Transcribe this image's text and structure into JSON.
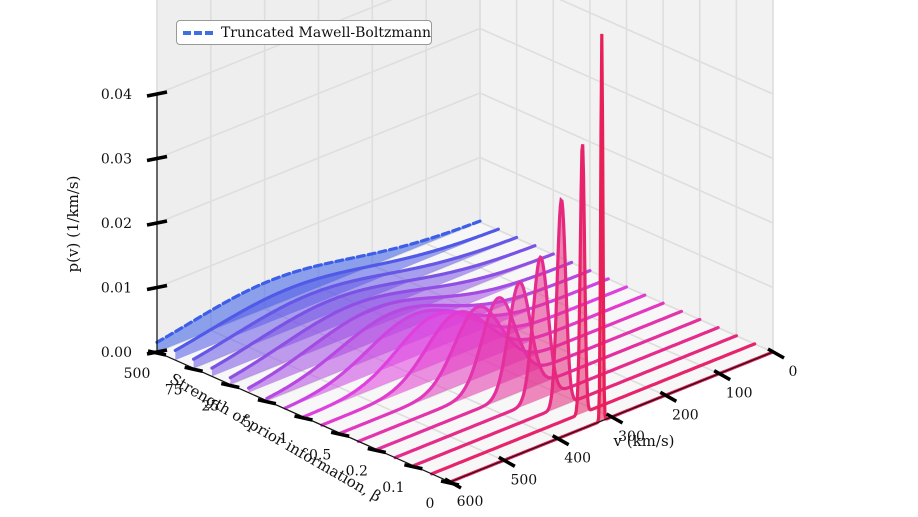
{
  "chart_data": {
    "type": "area",
    "projection": "3d",
    "grid": true,
    "legend_placement": "top-left",
    "legend": [
      {
        "label": "Truncated Mawell-Boltzmann",
        "style": "dashed",
        "color": "#3f6fe0"
      }
    ],
    "xlabel": "$p(v)$ (1/km/s)",
    "xlabel_display": "p(v)  (1/km/s)",
    "zlabel": "$v$ (km/s)",
    "zlabel_display": "v (km/s)",
    "ylabel": "Strength of prior information, $\\beta$",
    "ylabel_display": "Strength of prior information, β",
    "p_ticks": [
      "0.00",
      "0.01",
      "0.02",
      "0.03",
      "0.04"
    ],
    "p_lim": [
      0,
      0.04
    ],
    "v_ticks": [
      "0",
      "100",
      "200",
      "300",
      "400",
      "500",
      "600"
    ],
    "v_lim": [
      0,
      600
    ],
    "beta_ticks": [
      "500",
      "75",
      "25",
      "5",
      "1",
      "0.5",
      "0.2",
      "0.1",
      "0"
    ],
    "colors": {
      "beta_large": "#3d5ee8",
      "beta_mid": "#e040e0",
      "beta_small": "#e8205a"
    },
    "series_note": "ridgeline curves p(v) for beta from 500 (blue) to 0 (red)",
    "series": [
      {
        "beta": "500",
        "peak_v": 390,
        "width_v": 150,
        "peak_p": 0.004
      },
      {
        "beta": "300",
        "peak_v": 390,
        "width_v": 150,
        "peak_p": 0.004
      },
      {
        "beta": "75",
        "peak_v": 385,
        "width_v": 145,
        "peak_p": 0.0042
      },
      {
        "beta": "50",
        "peak_v": 380,
        "width_v": 140,
        "peak_p": 0.0044
      },
      {
        "beta": "25",
        "peak_v": 375,
        "width_v": 130,
        "peak_p": 0.0047
      },
      {
        "beta": "10",
        "peak_v": 370,
        "width_v": 115,
        "peak_p": 0.0052
      },
      {
        "beta": "5",
        "peak_v": 365,
        "width_v": 100,
        "peak_p": 0.0058
      },
      {
        "beta": "2",
        "peak_v": 360,
        "width_v": 85,
        "peak_p": 0.0066
      },
      {
        "beta": "1",
        "peak_v": 355,
        "width_v": 70,
        "peak_p": 0.0076
      },
      {
        "beta": "0.75",
        "peak_v": 350,
        "width_v": 55,
        "peak_p": 0.009
      },
      {
        "beta": "0.5",
        "peak_v": 345,
        "width_v": 42,
        "peak_p": 0.011
      },
      {
        "beta": "0.3",
        "peak_v": 340,
        "width_v": 30,
        "peak_p": 0.0135
      },
      {
        "beta": "0.2",
        "peak_v": 335,
        "width_v": 20,
        "peak_p": 0.017
      },
      {
        "beta": "0.15",
        "peak_v": 330,
        "width_v": 14,
        "peak_p": 0.022
      },
      {
        "beta": "0.1",
        "peak_v": 325,
        "width_v": 8,
        "peak_p": 0.032
      },
      {
        "beta": "0.05",
        "peak_v": 320,
        "width_v": 4,
        "peak_p": 0.042
      },
      {
        "beta": "0",
        "peak_v": 318,
        "width_v": 2,
        "peak_p": 0.06
      }
    ]
  }
}
